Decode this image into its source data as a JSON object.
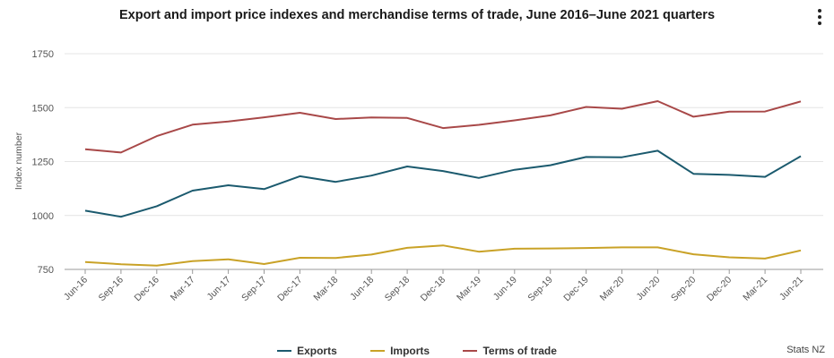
{
  "chart_data": {
    "type": "line",
    "title": "Export and import price indexes and merchandise terms of trade, June 2016–June 2021 quarters",
    "xlabel": "",
    "ylabel": "Index number",
    "ylim": [
      750,
      1750
    ],
    "yticks": [
      750,
      1000,
      1250,
      1500,
      1750
    ],
    "grid": true,
    "legend_position": "bottom",
    "categories": [
      "Jun-16",
      "Sep-16",
      "Dec-16",
      "Mar-17",
      "Jun-17",
      "Sep-17",
      "Dec-17",
      "Mar-18",
      "Jun-18",
      "Sep-18",
      "Dec-18",
      "Mar-19",
      "Jun-19",
      "Sep-19",
      "Dec-19",
      "Mar-20",
      "Jun-20",
      "Sep-20",
      "Dec-20",
      "Mar-21",
      "Jun-21"
    ],
    "series": [
      {
        "name": "Exports",
        "color": "#1b5a6e",
        "values": [
          1022,
          994,
          1043,
          1115,
          1140,
          1122,
          1182,
          1156,
          1185,
          1227,
          1206,
          1174,
          1212,
          1233,
          1271,
          1270,
          1300,
          1193,
          1188,
          1179,
          1275
        ]
      },
      {
        "name": "Imports",
        "color": "#c9a227",
        "values": [
          784,
          774,
          768,
          788,
          797,
          775,
          804,
          803,
          819,
          850,
          861,
          832,
          846,
          847,
          849,
          852,
          852,
          820,
          806,
          800,
          838
        ]
      },
      {
        "name": "Terms of trade",
        "color": "#a84848",
        "values": [
          1307,
          1292,
          1368,
          1421,
          1436,
          1455,
          1476,
          1447,
          1454,
          1452,
          1405,
          1420,
          1441,
          1464,
          1503,
          1495,
          1530,
          1458,
          1481,
          1482,
          1529
        ]
      }
    ]
  },
  "menu_icon": "kebab-menu-icon",
  "credit": "Stats NZ"
}
